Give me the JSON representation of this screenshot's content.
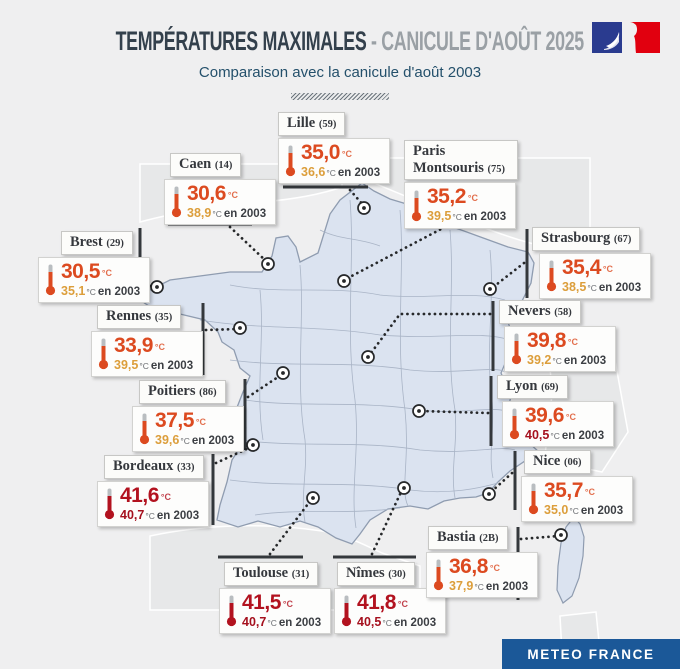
{
  "header": {
    "title_main": "TEMPÉRATURES MAXIMALES",
    "title_rest": " - CANICULE D'AOÛT 2025",
    "subtitle": "Comparaison avec la canicule d'août 2003"
  },
  "footer": {
    "brand": "METEO FRANCE"
  },
  "units": {
    "degree": "°C",
    "year_suffix": "en 2003"
  },
  "colors": {
    "temp2025_normal": "#dc4a20",
    "temp2025_extreme": "#b2121f",
    "temp2003_normal": "#dc9e3b",
    "temp2003_extreme": "#a5101e",
    "footer_blue": "#1b5898",
    "map_fill": "#dbe3f0"
  },
  "extreme_threshold": 40,
  "cities": [
    {
      "id": "lille",
      "name": "Lille",
      "dept": "(59)",
      "temp_2025": "35,0",
      "temp_2003": "36,6"
    },
    {
      "id": "caen",
      "name": "Caen",
      "dept": "(14)",
      "temp_2025": "30,6",
      "temp_2003": "38,9"
    },
    {
      "id": "paris",
      "name": "Paris Montsouris",
      "dept": "(75)",
      "temp_2025": "35,2",
      "temp_2003": "39,5"
    },
    {
      "id": "brest",
      "name": "Brest",
      "dept": "(29)",
      "temp_2025": "30,5",
      "temp_2003": "35,1"
    },
    {
      "id": "strasbourg",
      "name": "Strasbourg",
      "dept": "(67)",
      "temp_2025": "35,4",
      "temp_2003": "38,5"
    },
    {
      "id": "rennes",
      "name": "Rennes",
      "dept": "(35)",
      "temp_2025": "33,9",
      "temp_2003": "39,5"
    },
    {
      "id": "nevers",
      "name": "Nevers",
      "dept": "(58)",
      "temp_2025": "39,8",
      "temp_2003": "39,2"
    },
    {
      "id": "poitiers",
      "name": "Poitiers",
      "dept": "(86)",
      "temp_2025": "37,5",
      "temp_2003": "39,6"
    },
    {
      "id": "lyon",
      "name": "Lyon",
      "dept": "(69)",
      "temp_2025": "39,6",
      "temp_2003": "40,5"
    },
    {
      "id": "bordeaux",
      "name": "Bordeaux",
      "dept": "(33)",
      "temp_2025": "41,6",
      "temp_2003": "40,7"
    },
    {
      "id": "nice",
      "name": "Nice",
      "dept": "(06)",
      "temp_2025": "35,7",
      "temp_2003": "35,0"
    },
    {
      "id": "toulouse",
      "name": "Toulouse",
      "dept": "(31)",
      "temp_2025": "41,5",
      "temp_2003": "40,7"
    },
    {
      "id": "nimes",
      "name": "Nîmes",
      "dept": "(30)",
      "temp_2025": "41,8",
      "temp_2003": "40,5"
    },
    {
      "id": "bastia",
      "name": "Bastia",
      "dept": "(2B)",
      "temp_2025": "36,8",
      "temp_2003": "37,9"
    }
  ]
}
